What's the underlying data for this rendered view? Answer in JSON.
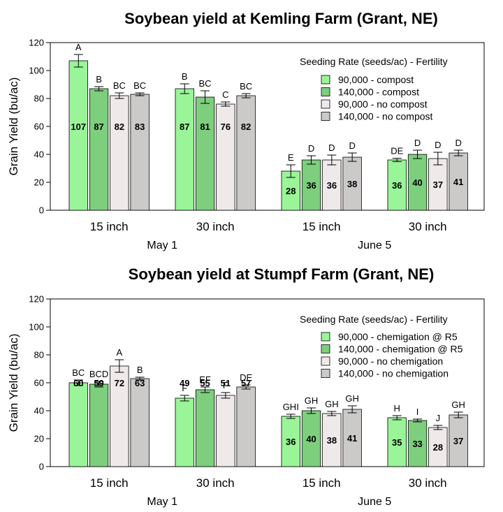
{
  "colors": {
    "series1": "#99f598",
    "series2": "#7dcf7d",
    "series3": "#efe9ea",
    "series4": "#ccc9c9",
    "stroke": "#000000"
  },
  "chart_data": [
    {
      "type": "bar",
      "title": "Soybean yield at Kemling Farm (Grant, NE)",
      "ylabel": "Grain Yield (bu/ac)",
      "ylim": [
        0,
        120
      ],
      "yticks": [
        0,
        20,
        40,
        60,
        80,
        100,
        120
      ],
      "grid": false,
      "legend_position": "top-right",
      "legend_title": "Seeding Rate (seeds/ac) - Fertility",
      "categories": [
        "15 inch",
        "30 inch",
        "15 inch",
        "30 inch"
      ],
      "groups": [
        {
          "label": "May 1",
          "categories": [
            0,
            1
          ]
        },
        {
          "label": "June 5",
          "categories": [
            2,
            3
          ]
        }
      ],
      "series": [
        {
          "name": "90,000 - compost",
          "values": [
            107,
            87,
            28,
            36
          ],
          "labels": [
            "107",
            "87",
            "28",
            "36"
          ],
          "letters": [
            "A",
            "B",
            "E",
            "DE"
          ],
          "errors": [
            4.5,
            3.5,
            4.5,
            1.2
          ]
        },
        {
          "name": "140,000 - compost",
          "values": [
            87,
            81,
            36,
            40
          ],
          "labels": [
            "87",
            "81",
            "36",
            "40"
          ],
          "letters": [
            "B",
            "BC",
            "D",
            "D"
          ],
          "errors": [
            1.5,
            4.5,
            3.0,
            3.0
          ]
        },
        {
          "name": "90,000 - no compost",
          "values": [
            82,
            76,
            36,
            37
          ],
          "labels": [
            "82",
            "76",
            "36",
            "37"
          ],
          "letters": [
            "BC",
            "C",
            "D",
            "D"
          ],
          "errors": [
            2.0,
            1.5,
            3.5,
            4.5
          ]
        },
        {
          "name": "140,000 - no compost",
          "values": [
            83,
            82,
            38,
            41
          ],
          "labels": [
            "83",
            "82",
            "38",
            "41"
          ],
          "letters": [
            "BC",
            "BC",
            "D",
            "D"
          ],
          "errors": [
            1.0,
            1.5,
            3.0,
            2.0
          ]
        }
      ]
    },
    {
      "type": "bar",
      "title": "Soybean yield at Stumpf Farm (Grant, NE)",
      "ylabel": "Grain Yield (bu/ac)",
      "ylim": [
        0,
        120
      ],
      "yticks": [
        0,
        20,
        40,
        60,
        80,
        100,
        120
      ],
      "grid": false,
      "legend_position": "top-right",
      "legend_title": "Seeding Rate (seeds/ac) - Fertility",
      "categories": [
        "15 inch",
        "30 inch",
        "15 inch",
        "30 inch"
      ],
      "groups": [
        {
          "label": "May 1",
          "categories": [
            0,
            1
          ]
        },
        {
          "label": "June 5",
          "categories": [
            2,
            3
          ]
        }
      ],
      "series": [
        {
          "name": "90,000 - chemigation @ R5",
          "values": [
            60,
            49,
            36,
            35
          ],
          "labels": [
            "60",
            "49",
            "36",
            "35"
          ],
          "letters": [
            "BC",
            "F",
            "GHI",
            "H"
          ],
          "errors": [
            2.0,
            2.0,
            1.5,
            1.5
          ]
        },
        {
          "name": "140,000 - chemigation @ R5",
          "values": [
            59,
            55,
            40,
            33
          ],
          "labels": [
            "59",
            "55",
            "40",
            "33"
          ],
          "letters": [
            "BCD",
            "EF",
            "GH",
            "I"
          ],
          "errors": [
            2.0,
            2.0,
            2.0,
            1.0
          ]
        },
        {
          "name": "90,000 - no chemigation",
          "values": [
            72,
            51,
            38,
            28
          ],
          "labels": [
            "72",
            "51",
            "38",
            "28"
          ],
          "letters": [
            "A",
            "F",
            "GH",
            "J"
          ],
          "errors": [
            4.5,
            2.0,
            1.5,
            1.5
          ]
        },
        {
          "name": "140,000 - no chemigation",
          "values": [
            63,
            57,
            41,
            37
          ],
          "labels": [
            "63",
            "57",
            "41",
            "37"
          ],
          "letters": [
            "B",
            "DE",
            "GH",
            "GH"
          ],
          "errors": [
            1.0,
            1.5,
            2.5,
            2.0
          ]
        }
      ]
    }
  ]
}
